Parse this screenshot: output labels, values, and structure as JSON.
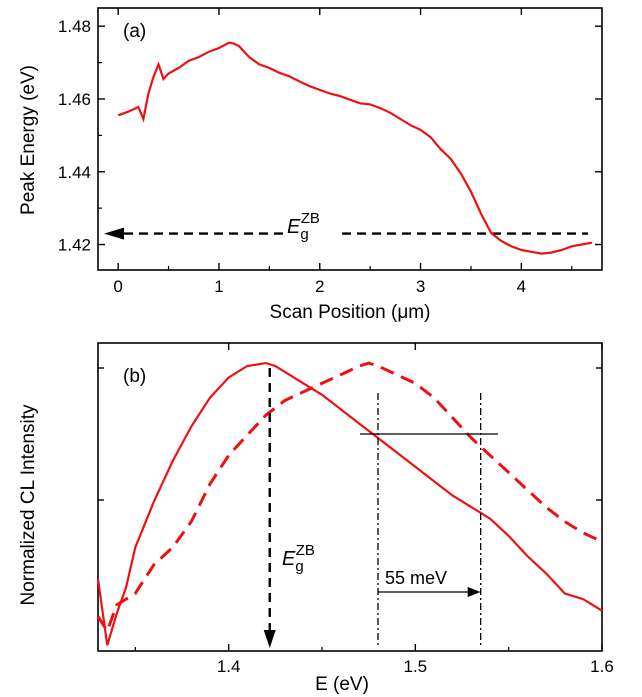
{
  "colors": {
    "series": "#ee1111",
    "axis": "#000000",
    "background": "#ffffff"
  },
  "chart_data": [
    {
      "type": "line",
      "panel_label": "(a)",
      "xlabel": "Scan Position (μm)",
      "ylabel": "Peak Energy (eV)",
      "xlim": [
        -0.2,
        4.8
      ],
      "ylim": [
        1.413,
        1.485
      ],
      "x_ticks": [
        0,
        1,
        2,
        3,
        4
      ],
      "x_tick_labels": [
        "0",
        "1",
        "2",
        "3",
        "4"
      ],
      "y_ticks": [
        1.42,
        1.44,
        1.46,
        1.48
      ],
      "y_tick_labels": [
        "1.42",
        "1.44",
        "1.46",
        "1.48"
      ],
      "grid": false,
      "series": [
        {
          "style": "solid",
          "x": [
            0.0,
            0.1,
            0.2,
            0.25,
            0.3,
            0.35,
            0.4,
            0.45,
            0.5,
            0.6,
            0.7,
            0.8,
            0.9,
            1.0,
            1.1,
            1.15,
            1.2,
            1.3,
            1.4,
            1.5,
            1.6,
            1.7,
            1.8,
            1.9,
            2.0,
            2.1,
            2.2,
            2.3,
            2.4,
            2.5,
            2.6,
            2.7,
            2.8,
            2.9,
            3.0,
            3.1,
            3.2,
            3.3,
            3.4,
            3.5,
            3.6,
            3.7,
            3.8,
            3.9,
            4.0,
            4.1,
            4.2,
            4.3,
            4.4,
            4.5,
            4.6,
            4.7
          ],
          "y": [
            1.4555,
            1.4565,
            1.4578,
            1.4545,
            1.4615,
            1.466,
            1.4695,
            1.4655,
            1.467,
            1.4685,
            1.4705,
            1.4715,
            1.473,
            1.474,
            1.4755,
            1.4752,
            1.4745,
            1.4715,
            1.4695,
            1.4685,
            1.4672,
            1.4662,
            1.4648,
            1.4635,
            1.4625,
            1.4615,
            1.4608,
            1.4598,
            1.4588,
            1.4585,
            1.4575,
            1.4562,
            1.4545,
            1.4528,
            1.4515,
            1.4495,
            1.4462,
            1.4435,
            1.4395,
            1.4345,
            1.4285,
            1.4232,
            1.421,
            1.4195,
            1.4185,
            1.418,
            1.4175,
            1.4178,
            1.4185,
            1.4195,
            1.42,
            1.4205
          ]
        }
      ],
      "annotations": [
        {
          "text": "E",
          "subscript": "g",
          "superscript": "ZB",
          "reference_value": 1.423,
          "arrow": "left",
          "style": "dashed"
        }
      ]
    },
    {
      "type": "line",
      "panel_label": "(b)",
      "xlabel": "E (eV)",
      "ylabel": "Normalized CL Intensity",
      "xlim": [
        1.33,
        1.6
      ],
      "ylim": [
        0.0,
        1.07
      ],
      "y_scale": "log",
      "x_ticks": [
        1.4,
        1.5,
        1.6
      ],
      "x_tick_labels": [
        "1.4",
        "1.5",
        "1.6"
      ],
      "y_tick_labels": [],
      "grid": false,
      "series": [
        {
          "style": "solid",
          "x": [
            1.33,
            1.335,
            1.34,
            1.345,
            1.35,
            1.36,
            1.37,
            1.38,
            1.39,
            1.4,
            1.41,
            1.42,
            1.425,
            1.43,
            1.44,
            1.45,
            1.46,
            1.47,
            1.48,
            1.49,
            1.5,
            1.51,
            1.52,
            1.53,
            1.54,
            1.55,
            1.56,
            1.57,
            1.58,
            1.59,
            1.6
          ],
          "y": [
            0.25,
            0.02,
            0.13,
            0.22,
            0.36,
            0.52,
            0.66,
            0.78,
            0.88,
            0.95,
            0.99,
            1.0,
            0.99,
            0.97,
            0.93,
            0.89,
            0.84,
            0.79,
            0.74,
            0.69,
            0.64,
            0.59,
            0.54,
            0.5,
            0.46,
            0.4,
            0.33,
            0.27,
            0.2,
            0.18,
            0.14
          ]
        },
        {
          "style": "dashed",
          "x": [
            1.33,
            1.335,
            1.34,
            1.345,
            1.35,
            1.36,
            1.37,
            1.38,
            1.39,
            1.4,
            1.41,
            1.42,
            1.43,
            1.44,
            1.45,
            1.46,
            1.47,
            1.475,
            1.48,
            1.49,
            1.5,
            1.51,
            1.52,
            1.53,
            1.54,
            1.55,
            1.56,
            1.57,
            1.58,
            1.59,
            1.6
          ],
          "y": [
            0.12,
            0.07,
            0.16,
            0.18,
            0.2,
            0.3,
            0.36,
            0.45,
            0.58,
            0.68,
            0.75,
            0.82,
            0.87,
            0.9,
            0.93,
            0.96,
            0.99,
            1.0,
            0.99,
            0.96,
            0.93,
            0.88,
            0.81,
            0.74,
            0.68,
            0.62,
            0.56,
            0.5,
            0.45,
            0.41,
            0.38
          ]
        }
      ],
      "annotations": [
        {
          "text": "E",
          "subscript": "g",
          "superscript": "ZB",
          "reference_value": 1.422,
          "arrow": "down",
          "style": "dashed"
        },
        {
          "text": "55 meV",
          "from": 1.48,
          "to": 1.535,
          "arrow": "right"
        }
      ]
    }
  ]
}
